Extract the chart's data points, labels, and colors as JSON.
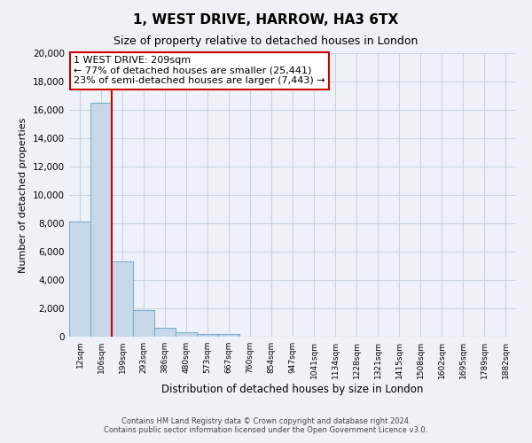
{
  "title": "1, WEST DRIVE, HARROW, HA3 6TX",
  "subtitle": "Size of property relative to detached houses in London",
  "xlabel": "Distribution of detached houses by size in London",
  "ylabel": "Number of detached properties",
  "bar_labels": [
    "12sqm",
    "106sqm",
    "199sqm",
    "293sqm",
    "386sqm",
    "480sqm",
    "573sqm",
    "667sqm",
    "760sqm",
    "854sqm",
    "947sqm",
    "1041sqm",
    "1134sqm",
    "1228sqm",
    "1321sqm",
    "1415sqm",
    "1508sqm",
    "1602sqm",
    "1695sqm",
    "1789sqm",
    "1882sqm"
  ],
  "bar_values": [
    8100,
    16500,
    5300,
    1850,
    650,
    300,
    200,
    175,
    0,
    0,
    0,
    0,
    0,
    0,
    0,
    0,
    0,
    0,
    0,
    0,
    0
  ],
  "bar_color": "#c8d8eb",
  "bar_edge_color": "#7aadcc",
  "annotation_line_color": "#cc0000",
  "annotation_box_edge_color": "#cc0000",
  "annotation_box_text_line1": "1 WEST DRIVE: 209sqm",
  "annotation_box_text_line2": "← 77% of detached houses are smaller (25,441)",
  "annotation_box_text_line3": "23% of semi-detached houses are larger (7,443) →",
  "ylim": [
    0,
    20000
  ],
  "yticks": [
    0,
    2000,
    4000,
    6000,
    8000,
    10000,
    12000,
    14000,
    16000,
    18000,
    20000
  ],
  "grid_color": "#c8d4e0",
  "footer_line1": "Contains HM Land Registry data © Crown copyright and database right 2024.",
  "footer_line2": "Contains public sector information licensed under the Open Government Licence v3.0.",
  "fig_bg_color": "#eef2f8",
  "plot_bg_color": "#eef2f8",
  "title_fontsize": 11,
  "subtitle_fontsize": 9
}
